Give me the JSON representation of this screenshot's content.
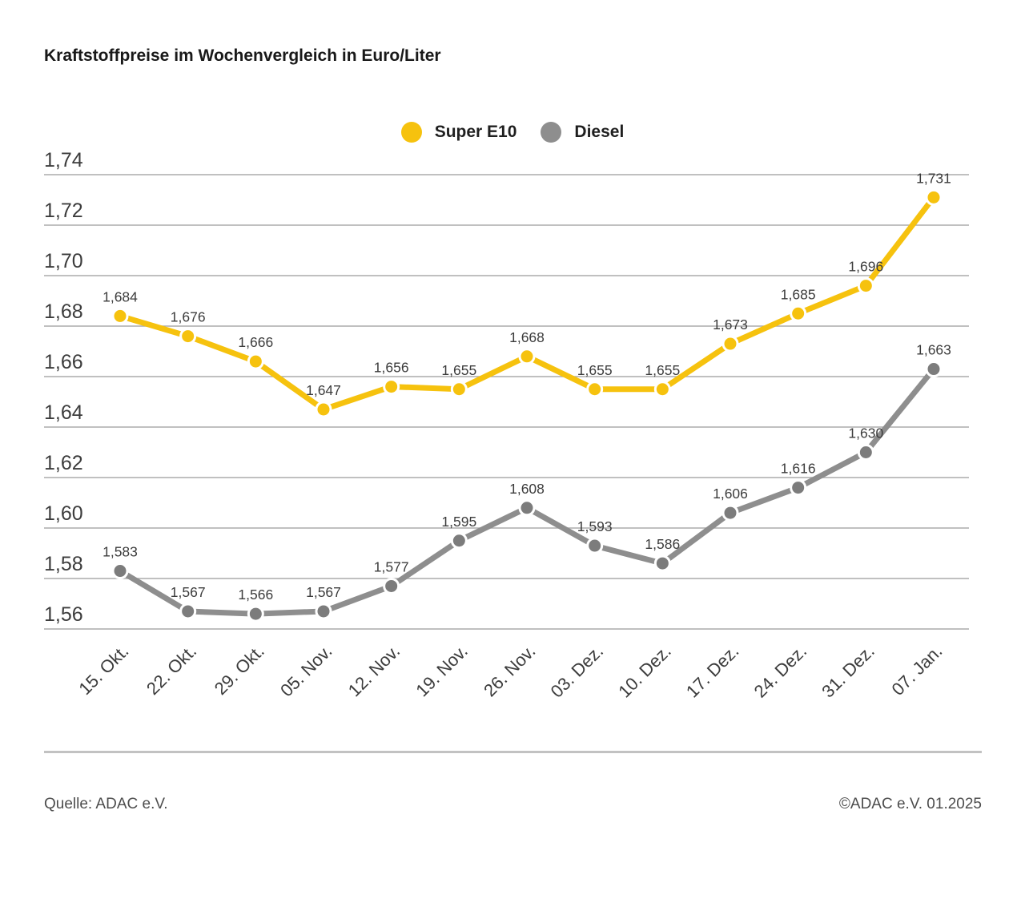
{
  "header": {
    "title": "Kraftstoffpreise im Wochenvergleich in Euro/Liter"
  },
  "legend": {
    "items": [
      {
        "label": "Super E10",
        "color": "#f6c20e"
      },
      {
        "label": "Diesel",
        "color": "#8e8e8e"
      }
    ]
  },
  "chart_data": {
    "type": "line",
    "title": "Kraftstoffpreise im Wochenvergleich in Euro/Liter",
    "unit": "Euro/Liter",
    "categories": [
      "15. Okt.",
      "22. Okt.",
      "29. Okt.",
      "05. Nov.",
      "12. Nov.",
      "19. Nov.",
      "26. Nov.",
      "03. Dez.",
      "10. Dez.",
      "17. Dez.",
      "24. Dez.",
      "31. Dez.",
      "07. Jan."
    ],
    "series": [
      {
        "name": "Super E10",
        "color": "#f6c20e",
        "dot_color": "#f6c20e",
        "values": [
          1.684,
          1.676,
          1.666,
          1.647,
          1.656,
          1.655,
          1.668,
          1.655,
          1.655,
          1.673,
          1.685,
          1.696,
          1.731
        ],
        "labels": [
          "1,684",
          "1,676",
          "1,666",
          "1,647",
          "1,656",
          "1,655",
          "1,668",
          "1,655",
          "1,655",
          "1,673",
          "1,685",
          "1,696",
          "1,731"
        ]
      },
      {
        "name": "Diesel",
        "color": "#8e8e8e",
        "dot_color": "#7c7c7c",
        "values": [
          1.583,
          1.567,
          1.566,
          1.567,
          1.577,
          1.595,
          1.608,
          1.593,
          1.586,
          1.606,
          1.616,
          1.63,
          1.663
        ],
        "labels": [
          "1,583",
          "1,567",
          "1,566",
          "1,567",
          "1,577",
          "1,595",
          "1,608",
          "1,593",
          "1,586",
          "1,606",
          "1,616",
          "1,630",
          "1,663"
        ]
      }
    ],
    "ylim": [
      1.56,
      1.74
    ],
    "ytick_step": 0.02,
    "ytick_labels": [
      "1,56",
      "1,58",
      "1,60",
      "1,62",
      "1,64",
      "1,66",
      "1,68",
      "1,70",
      "1,72",
      "1,74"
    ],
    "grid": "horizontal",
    "gridline_color": "#ababab",
    "axis_text_color": "#3c3c3c",
    "point_labels_visible": true,
    "legend_position": "top-center"
  },
  "footer": {
    "source": "Quelle: ADAC e.V.",
    "copyright": "©ADAC e.V. 01.2025"
  }
}
